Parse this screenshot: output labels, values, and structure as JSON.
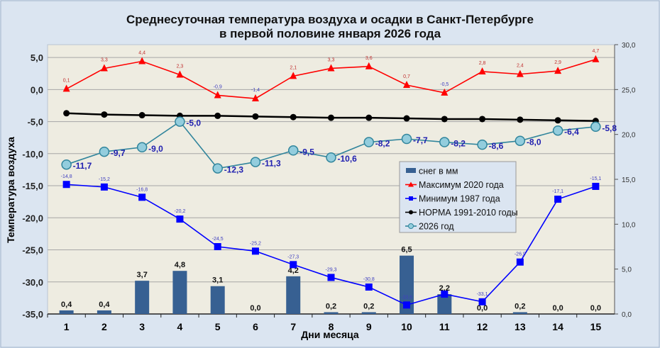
{
  "chart_data": {
    "type": "bar+line",
    "title": [
      "Среднесуточная температура воздуха и осадки в Санкт-Петербурге",
      "в первой половине января 2026 года"
    ],
    "xlabel": "Дни месяца",
    "ylabel": "Температура воздуха",
    "categories": [
      "1",
      "2",
      "3",
      "4",
      "5",
      "6",
      "7",
      "8",
      "9",
      "10",
      "11",
      "12",
      "13",
      "14",
      "15"
    ],
    "ylim": [
      -35,
      7
    ],
    "yticks": [
      "5,0",
      "0,0",
      "-5,0",
      "-10,0",
      "-15,0",
      "-20,0",
      "-25,0",
      "-30,0",
      "-35,0"
    ],
    "y2lim": [
      0,
      30
    ],
    "y2ticks": [
      "30,0",
      "25,0",
      "20,0",
      "15,0",
      "10,0",
      "5,0",
      "0,0"
    ],
    "grid": true,
    "legend_position": "center-right",
    "bars": {
      "name": "снег в мм",
      "axis": "right",
      "color": "#376092",
      "values": [
        0.4,
        0.4,
        3.7,
        4.8,
        3.1,
        0.0,
        4.2,
        0.2,
        0.2,
        6.5,
        2.2,
        0.0,
        0.2,
        0.0,
        0.0
      ],
      "labels": [
        "0,4",
        "0,4",
        "3,7",
        "4,8",
        "3,1",
        "0,0",
        "4,2",
        "0,2",
        "0,2",
        "6,5",
        "2,2",
        "0,0",
        "0,2",
        "0,0",
        "0,0"
      ]
    },
    "series": [
      {
        "name": "Максимум 2020 года",
        "color": "#ff0000",
        "marker": "triangle",
        "values": [
          0.1,
          3.3,
          4.4,
          2.3,
          -0.9,
          -1.4,
          2.1,
          3.3,
          3.6,
          0.7,
          -0.5,
          2.8,
          2.4,
          2.9,
          4.7
        ],
        "labels": [
          "0,1",
          "3,3",
          "4,4",
          "2,3",
          "-0,9",
          "-1,4",
          "2,1",
          "3,3",
          "3,6",
          "0,7",
          "-0,5",
          "2,8",
          "2,4",
          "2,9",
          "4,7"
        ]
      },
      {
        "name": "Минимум 1987 года",
        "color": "#0000ff",
        "marker": "square",
        "values": [
          -14.8,
          -15.2,
          -16.8,
          -20.2,
          -24.5,
          -25.2,
          -27.3,
          -29.3,
          -30.8,
          -33.6,
          -31.9,
          -33.1,
          -26.9,
          -17.1,
          -15.1
        ],
        "labels": [
          "-14,8",
          "-15,2",
          "-16,8",
          "-20,2",
          "-24,5",
          "-25,2",
          "-27,3",
          "-29,3",
          "-30,8",
          "-33,6",
          "",
          "-33,1",
          "-26,9",
          "-17,1",
          "-15,1"
        ]
      },
      {
        "name": "НОРМА 1991-2010 годы",
        "color": "#000000",
        "marker": "circle",
        "values": [
          -3.7,
          -3.9,
          -4.0,
          -4.1,
          -4.1,
          -4.2,
          -4.3,
          -4.4,
          -4.4,
          -4.5,
          -4.6,
          -4.6,
          -4.7,
          -4.8,
          -4.9
        ],
        "labels": []
      },
      {
        "name": "2026 год",
        "color": "#31859c",
        "marker": "circle-open",
        "fill": "#93cddd",
        "values": [
          -11.7,
          -9.7,
          -9.0,
          -5.0,
          -12.3,
          -11.3,
          -9.5,
          -10.6,
          -8.2,
          -7.7,
          -8.2,
          -8.6,
          -8.0,
          -6.4,
          -5.8
        ],
        "labels": [
          "-11,7",
          "-9,7",
          "-9,0",
          "-5,0",
          "-12,3",
          "-11,3",
          "-9,5",
          "-10,6",
          "-8,2",
          "-7,7",
          "-8,2",
          "-8,6",
          "-8,0",
          "-6,4",
          "-5,8"
        ]
      }
    ]
  }
}
